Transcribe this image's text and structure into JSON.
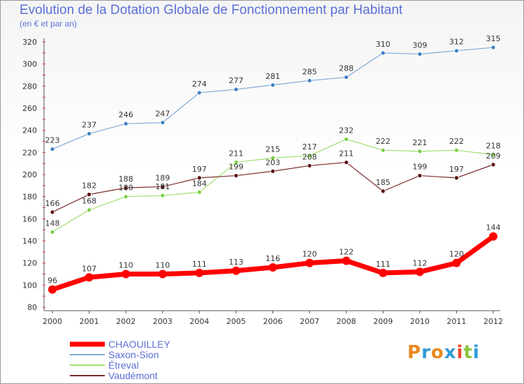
{
  "header": {
    "title": "Evolution de la Dotation Globale de Fonctionnement par Habitant",
    "subtitle": "(en € et par an)"
  },
  "logo": {
    "text": "Proxiti",
    "colors": [
      "#e8891f",
      "#2f9ad8",
      "#e8891f",
      "#2f9ad8",
      "#e84a2f",
      "#8cc63f",
      "#2f9ad8"
    ]
  },
  "chart_data": {
    "type": "line",
    "title": "Evolution de la Dotation Globale de Fonctionnement par Habitant",
    "subtitle": "(en € et par an)",
    "xlabel": "",
    "ylabel": "",
    "categories": [
      "2000",
      "2001",
      "2002",
      "2003",
      "2004",
      "2005",
      "2006",
      "2007",
      "2008",
      "2009",
      "2010",
      "2011",
      "2012"
    ],
    "ylim": [
      80,
      320
    ],
    "yticks": [
      80,
      100,
      120,
      140,
      160,
      180,
      200,
      220,
      240,
      260,
      280,
      300,
      320
    ],
    "grid": false,
    "legend_position": "bottom-left",
    "series": [
      {
        "name": "Saxon-Sion",
        "color": "#7fa9d6",
        "marker": "#3d7fc1",
        "width": 1.2,
        "values": [
          223,
          237,
          246,
          247,
          274,
          277,
          281,
          285,
          288,
          310,
          309,
          312,
          315
        ]
      },
      {
        "name": "Étreval",
        "color": "#9ee070",
        "marker": "#7bd044",
        "width": 1.2,
        "values": [
          148,
          168,
          180,
          181,
          184,
          211,
          215,
          217,
          232,
          222,
          221,
          222,
          218
        ]
      },
      {
        "name": "Vaudémont",
        "color": "#7a2a2a",
        "marker": "#5a1212",
        "width": 1.2,
        "values": [
          166,
          182,
          188,
          189,
          197,
          199,
          203,
          208,
          211,
          185,
          199,
          197,
          209
        ]
      },
      {
        "name": "CHAOUILLEY",
        "color": "#ff0000",
        "marker": "#ff0000",
        "width": 7,
        "values": [
          96,
          107,
          110,
          110,
          111,
          113,
          116,
          120,
          122,
          111,
          112,
          120,
          144
        ]
      }
    ],
    "legend": [
      "CHAOUILLEY",
      "Saxon-Sion",
      "Étreval",
      "Vaudémont"
    ]
  }
}
